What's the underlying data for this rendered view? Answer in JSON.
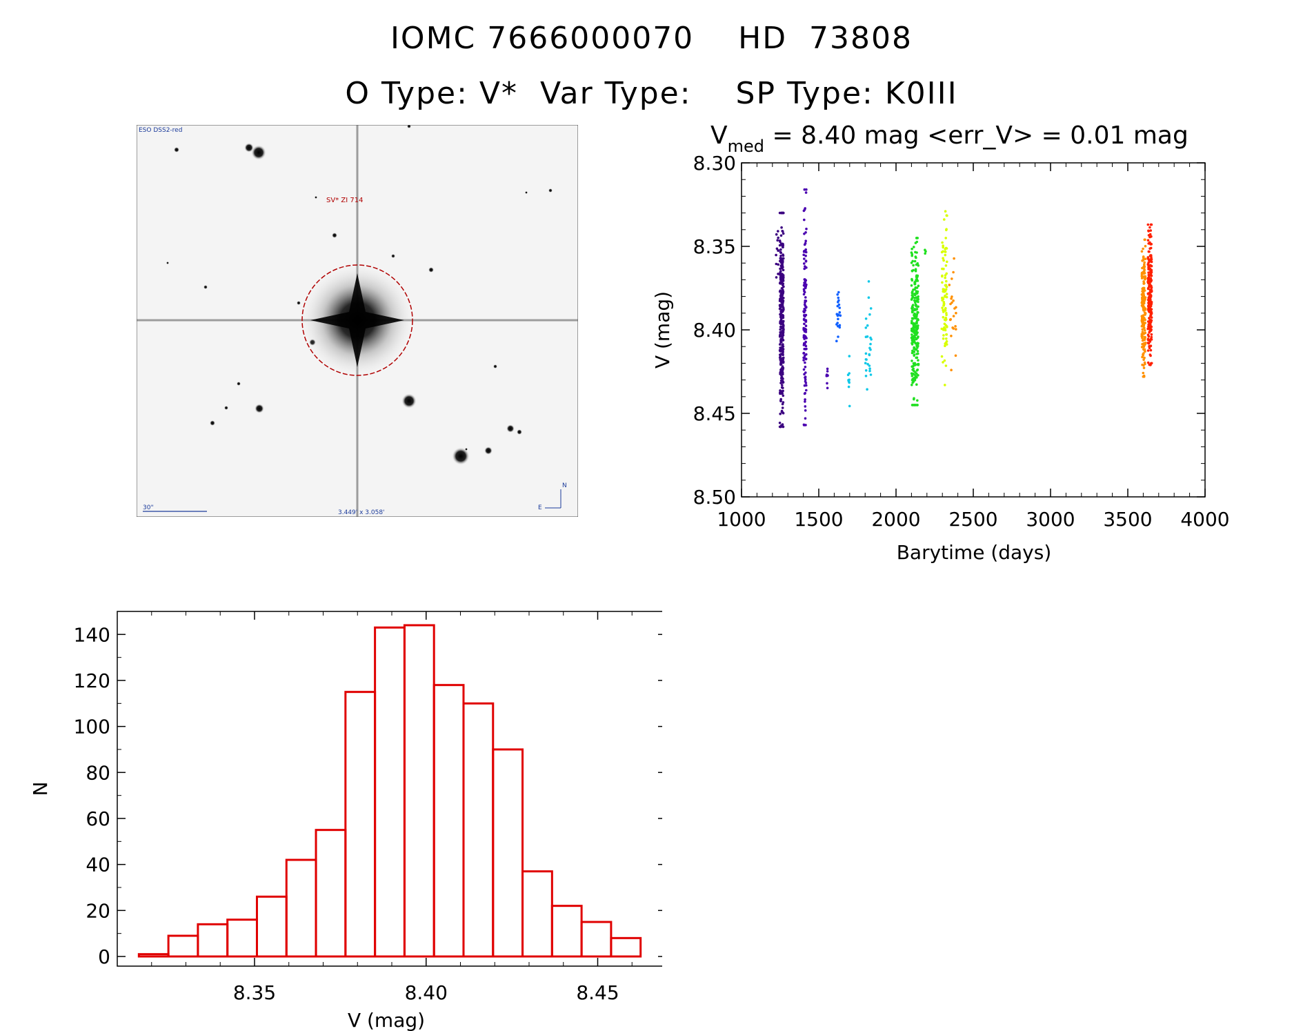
{
  "header": {
    "title": "IOMC 7666000070    HD  73808",
    "subtitle": "O Type: V*  Var Type:    SP Type: K0III"
  },
  "sky_image": {
    "survey_label": "ESO DSS2-red",
    "object_label": "SV* ZI 714",
    "scale_label": "30\"",
    "fov_label": "3.449' x 3.058'",
    "north_label": "N",
    "east_label": "E"
  },
  "colors": {
    "histogram": "#e00000",
    "lightcurve_seasons": [
      "#3b0080",
      "#4a00b0",
      "#1060ff",
      "#10c8e8",
      "#20e020",
      "#d8ff00",
      "#ff9000",
      "#ff2000"
    ]
  },
  "chart_data": [
    {
      "type": "scatter",
      "title_prefix": "V",
      "title_sub": "med",
      "title_rest": " = 8.40 mag <err_V> = 0.01 mag",
      "xlabel": "Barytime (days)",
      "ylabel": "V (mag)",
      "xlim": [
        1000,
        4000
      ],
      "ylim": [
        8.5,
        8.3
      ],
      "y_inverted": true,
      "xticks": [
        1000,
        1500,
        2000,
        2500,
        3000,
        3500,
        4000
      ],
      "yticks": [
        "8.30",
        "8.35",
        "8.40",
        "8.45",
        "8.50"
      ],
      "series": [
        {
          "x_range": [
            1220,
            1240
          ],
          "y_range": [
            8.335,
            8.378
          ],
          "count": 12
        },
        {
          "x_range": [
            1248,
            1272
          ],
          "y_range": [
            8.33,
            8.458
          ],
          "count": 320
        },
        {
          "x_range": [
            1402,
            1420
          ],
          "y_range": [
            8.316,
            8.457
          ],
          "count": 130
        },
        {
          "x_range": [
            1548,
            1560
          ],
          "y_range": [
            8.418,
            8.436
          ],
          "count": 8
        },
        {
          "x_range": [
            1615,
            1640
          ],
          "y_range": [
            8.366,
            8.418
          ],
          "count": 22
        },
        {
          "x_range": [
            1690,
            1702
          ],
          "y_range": [
            8.409,
            8.454
          ],
          "count": 10
        },
        {
          "x_range": [
            1800,
            1840
          ],
          "y_range": [
            8.371,
            8.437
          ],
          "count": 28
        },
        {
          "x_range": [
            2100,
            2145
          ],
          "y_range": [
            8.345,
            8.445
          ],
          "count": 260
        },
        {
          "x_range": [
            2185,
            2195
          ],
          "y_range": [
            8.35,
            8.356
          ],
          "count": 3
        },
        {
          "x_range": [
            2295,
            2330
          ],
          "y_range": [
            8.329,
            8.433
          ],
          "count": 95
        },
        {
          "x_range": [
            2345,
            2390
          ],
          "y_range": [
            8.35,
            8.43
          ],
          "count": 22
        },
        {
          "x_range": [
            3590,
            3615
          ],
          "y_range": [
            8.346,
            8.428
          ],
          "count": 190
        },
        {
          "x_range": [
            3630,
            3655
          ],
          "y_range": [
            8.337,
            8.421
          ],
          "count": 230
        }
      ]
    },
    {
      "type": "bar",
      "subtype": "histogram",
      "xlabel": "V (mag)",
      "ylabel": "N",
      "xlim": [
        8.31,
        8.47
      ],
      "ylim": [
        0,
        150
      ],
      "xticks": [
        "8.35",
        "8.40",
        "8.45"
      ],
      "yticks": [
        "0",
        "20",
        "40",
        "60",
        "80",
        "100",
        "120",
        "140"
      ],
      "bin_edges": [
        8.3163,
        8.3249,
        8.3335,
        8.3421,
        8.3507,
        8.3593,
        8.3679,
        8.3765,
        8.3851,
        8.3937,
        8.4023,
        8.4109,
        8.4195,
        8.4281,
        8.4367,
        8.4453,
        8.4539,
        8.4625
      ],
      "values": [
        1,
        9,
        14,
        16,
        26,
        42,
        55,
        115,
        143,
        144,
        118,
        110,
        90,
        37,
        22,
        15,
        8
      ]
    }
  ]
}
